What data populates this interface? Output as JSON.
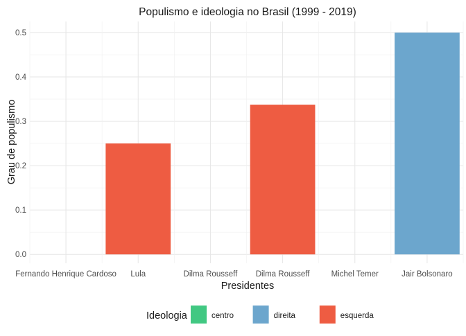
{
  "chart_data": {
    "type": "bar",
    "title": "Populismo e ideologia no Brasil (1999 - 2019)",
    "xlabel": "Presidentes",
    "ylabel": "Grau de populismo",
    "ylim": [
      -0.02,
      0.525
    ],
    "yticks": [
      0.0,
      0.1,
      0.2,
      0.3,
      0.4,
      0.5
    ],
    "ytick_labels": [
      "0.0",
      "0.1",
      "0.2",
      "0.3",
      "0.4",
      "0.5"
    ],
    "grid": true,
    "categories": [
      "Fernando Henrique Cardoso",
      "Lula",
      "Dilma Rousseff",
      "Dilma Rousseff",
      "Michel Temer",
      "Jair Bolsonaro"
    ],
    "values": [
      0.0,
      0.25,
      0.0,
      0.3375,
      0.0,
      0.5
    ],
    "ideology": [
      "",
      "esquerda",
      "",
      "esquerda",
      "",
      "direita"
    ],
    "legend": {
      "title": "Ideologia",
      "position": "bottom",
      "entries": [
        {
          "label": "centro",
          "color": "#41C882"
        },
        {
          "label": "direita",
          "color": "#6CA6CD"
        },
        {
          "label": "esquerda",
          "color": "#EE5C42"
        }
      ]
    }
  }
}
